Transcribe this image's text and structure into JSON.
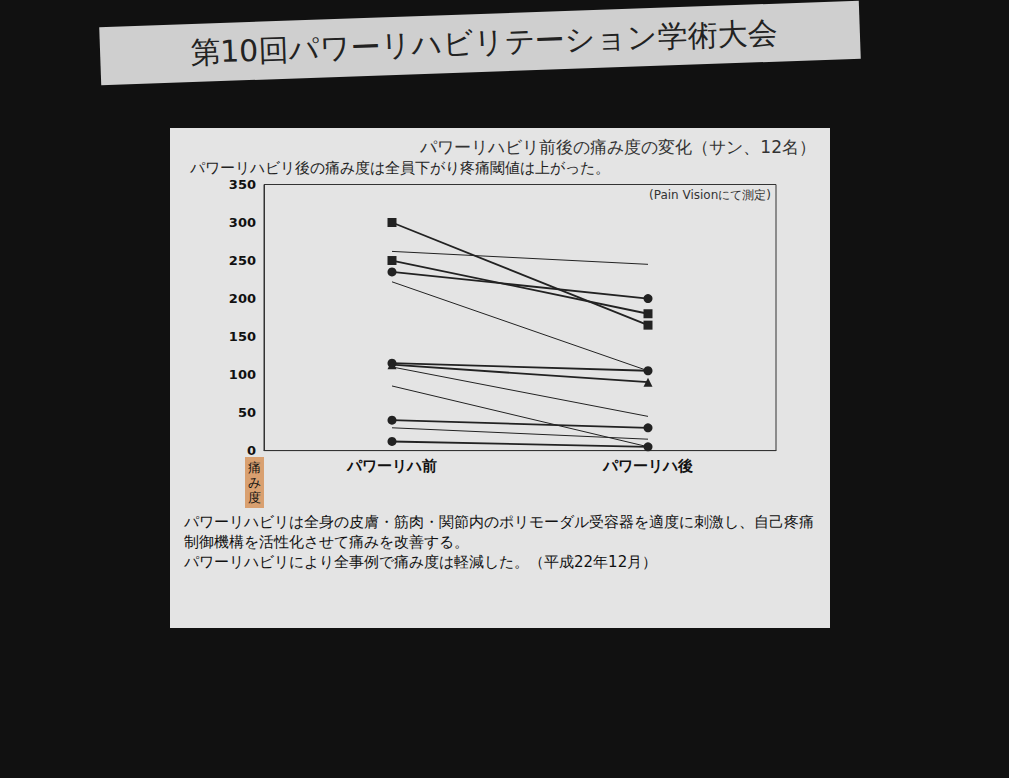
{
  "banner": "第10回パワーリハビリテーション学術大会",
  "chart_data": {
    "type": "line",
    "title": "パワーリハビリ前後の痛み度の変化（サン、12名）",
    "subtitle": "パワーリハビリ後の痛み度は全員下がり疼痛閾値は上がった。",
    "ylabel": "痛み度",
    "annotations": [
      "(Pain Visionにて測定)",
      "パワーリハビリは全身の皮膚・筋肉・関節内のポリモーダル受容器を適度に刺激し、自己疼痛制御機構を活性化させて痛みを改善する。",
      "パワーリハビリにより全事例で痛み度は軽減した。（平成22年12月）"
    ],
    "categories": [
      "パワーリハ前",
      "パワーリハ後"
    ],
    "color": "#222222",
    "ylim": [
      0,
      350
    ],
    "yticks": [
      0,
      50,
      100,
      150,
      200,
      250,
      300,
      350
    ],
    "grid": false,
    "series": [
      {
        "values": [
          300,
          165
        ],
        "marker": "square"
      },
      {
        "values": [
          262,
          245
        ],
        "marker": "none"
      },
      {
        "values": [
          250,
          180
        ],
        "marker": "square"
      },
      {
        "values": [
          235,
          200
        ],
        "marker": "circle"
      },
      {
        "values": [
          222,
          105
        ],
        "marker": "none"
      },
      {
        "values": [
          115,
          105
        ],
        "marker": "circle"
      },
      {
        "values": [
          113,
          90
        ],
        "marker": "triangle"
      },
      {
        "values": [
          110,
          45
        ],
        "marker": "none"
      },
      {
        "values": [
          85,
          5
        ],
        "marker": "none"
      },
      {
        "values": [
          40,
          30
        ],
        "marker": "circle"
      },
      {
        "values": [
          30,
          15
        ],
        "marker": "none"
      },
      {
        "values": [
          12,
          5
        ],
        "marker": "circle"
      }
    ]
  }
}
